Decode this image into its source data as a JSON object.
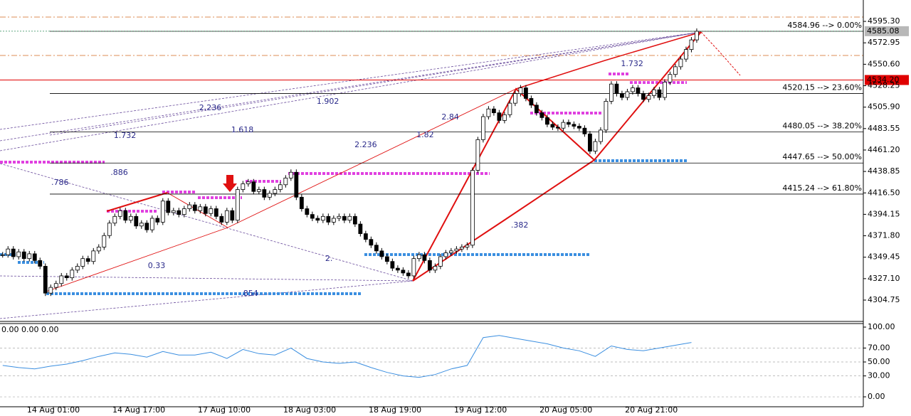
{
  "chart_data": {
    "type": "candlestick",
    "close": [
      4352,
      4358,
      4350,
      4355,
      4348,
      4353,
      4346,
      4340,
      4312,
      4318,
      4322,
      4330,
      4328,
      4336,
      4340,
      4348,
      4345,
      4356,
      4360,
      4372,
      4385,
      4392,
      4398,
      4388,
      4392,
      4382,
      4385,
      4378,
      4390,
      4386,
      4408,
      4396,
      4398,
      4394,
      4400,
      4404,
      4398,
      4402,
      4395,
      4400,
      4392,
      4386,
      4398,
      4388,
      4420,
      4426,
      4428,
      4418,
      4420,
      4412,
      4416,
      4420,
      4425,
      4432,
      4438,
      4412,
      4400,
      4394,
      4390,
      4388,
      4392,
      4386,
      4390,
      4392,
      4388,
      4392,
      4384,
      4374,
      4368,
      4362,
      4356,
      4350,
      4345,
      4338,
      4336,
      4333,
      4330,
      4348,
      4352,
      4346,
      4336,
      4340,
      4350,
      4354,
      4356,
      4358,
      4360,
      4362,
      4440,
      4472,
      4496,
      4504,
      4500,
      4492,
      4498,
      4510,
      4520,
      4526,
      4515,
      4508,
      4500,
      4495,
      4488,
      4485,
      4484,
      4490,
      4488,
      4486,
      4484,
      4478,
      4460,
      4470,
      4482,
      4512,
      4530,
      4520,
      4516,
      4522,
      4526,
      4520,
      4514,
      4518,
      4524,
      4516,
      4532,
      4540,
      4548,
      4556,
      4566,
      4576,
      4585
    ],
    "xlim": [
      -0.5,
      161.2
    ],
    "ylim": [
      4282.5,
      4617.6
    ],
    "yticks": [
      {
        "value": 4595.3,
        "label": "4595.30"
      },
      4572.95,
      {
        "value": 4550.6,
        "label": "4550.60"
      },
      4528.25,
      {
        "value": 4505.9,
        "label": "4505.90"
      },
      4483.55,
      {
        "value": 4461.2,
        "label": "4461.20"
      },
      4438.85,
      {
        "value": 4416.5,
        "label": "4416.50"
      },
      4394.15,
      {
        "value": 4371.8,
        "label": "4371.80"
      },
      4349.45,
      {
        "value": 4327.1,
        "label": "4327.10"
      },
      4304.75
    ],
    "xticks": [
      {
        "value": 9.5,
        "label": "14 Aug 01:00"
      },
      {
        "value": 25.5,
        "label": "14 Aug 17:00"
      },
      {
        "value": 41.5,
        "label": "17 Aug 10:00"
      },
      {
        "value": 57.5,
        "label": "18 Aug 03:00"
      },
      {
        "value": 73.5,
        "label": "18 Aug 19:00"
      },
      {
        "value": 89.5,
        "label": "19 Aug 12:00"
      },
      {
        "value": 105.5,
        "label": "20 Aug 05:00"
      },
      {
        "value": 121.5,
        "label": "20 Aug 21:00"
      }
    ],
    "levels": [
      {
        "value": 4584.96,
        "label": "4584.96 --> 0.00%"
      },
      {
        "value": 4520.15,
        "label": "4520.15 --> 23.60%"
      },
      {
        "value": 4480.05,
        "label": "4480.05 --> 38.20%"
      },
      {
        "value": 4447.65,
        "label": "4447.65 --> 50.00%"
      },
      {
        "value": 4415.24,
        "label": "4415.24 --> 61.80%"
      }
    ],
    "dashed_levels": [
      4599.8,
      4559.8
    ],
    "price_tags": [
      {
        "value": 4534.2,
        "label": "4534.20",
        "color": "#e00000"
      },
      {
        "value": 4585.08,
        "label": "4585.08",
        "color": "#b8b8b8"
      }
    ],
    "annotations": [
      {
        "text": "2.236",
        "x": 36.8,
        "y": 4504.9
      },
      {
        "text": "1.902",
        "x": 58.8,
        "y": 4511.6
      },
      {
        "text": "1.732",
        "x": 20.8,
        "y": 4476.0
      },
      {
        "text": "1.618",
        "x": 42.8,
        "y": 4481.9
      },
      {
        "text": "2.84",
        "x": 82.2,
        "y": 4495.3
      },
      {
        "text": "1.82",
        "x": 77.5,
        "y": 4476.8
      },
      {
        "text": "2.236",
        "x": 65.9,
        "y": 4466.4
      },
      {
        "text": ".886",
        "x": 20.2,
        "y": 4437.5
      },
      {
        "text": ".786",
        "x": 9.1,
        "y": 4427.1
      },
      {
        "text": "0.33",
        "x": 27.2,
        "y": 4340.4
      },
      {
        "text": "2.",
        "x": 60.4,
        "y": 4347.8
      },
      {
        "text": ".854",
        "x": 44.6,
        "y": 4311.4
      },
      {
        "text": ".382",
        "x": 95.2,
        "y": 4382.6
      },
      {
        "text": "1.732",
        "x": 115.8,
        "y": 4550.9
      }
    ],
    "oscillator": {
      "type": "line",
      "label": "0.00 0.00 0.00",
      "color": "#3a8ee0",
      "x": [
        0,
        3,
        6,
        9,
        12,
        15,
        18,
        21,
        24,
        27,
        30,
        33,
        36,
        39,
        42,
        45,
        48,
        51,
        54,
        57,
        60,
        63,
        66,
        69,
        72,
        75,
        78,
        81,
        84,
        87,
        90,
        93,
        96,
        99,
        102,
        105,
        108,
        111,
        114,
        117,
        120,
        123,
        126,
        129
      ],
      "values": [
        45,
        42,
        40,
        44,
        47,
        52,
        58,
        63,
        61,
        57,
        65,
        60,
        60,
        64,
        55,
        68,
        62,
        60,
        70,
        55,
        50,
        48,
        50,
        42,
        35,
        30,
        28,
        32,
        40,
        45,
        85,
        88,
        84,
        80,
        76,
        70,
        66,
        58,
        73,
        68,
        66,
        70,
        74,
        78
      ],
      "ylim": [
        -12.2,
        105.1
      ],
      "yticks": [
        {
          "value": 100,
          "label": "100.00"
        },
        {
          "value": 70,
          "label": "70.00"
        },
        {
          "value": 50,
          "label": "50.00"
        },
        {
          "value": 30,
          "label": "30.00"
        },
        {
          "value": 0,
          "label": "0.00"
        }
      ],
      "grid": true
    }
  }
}
